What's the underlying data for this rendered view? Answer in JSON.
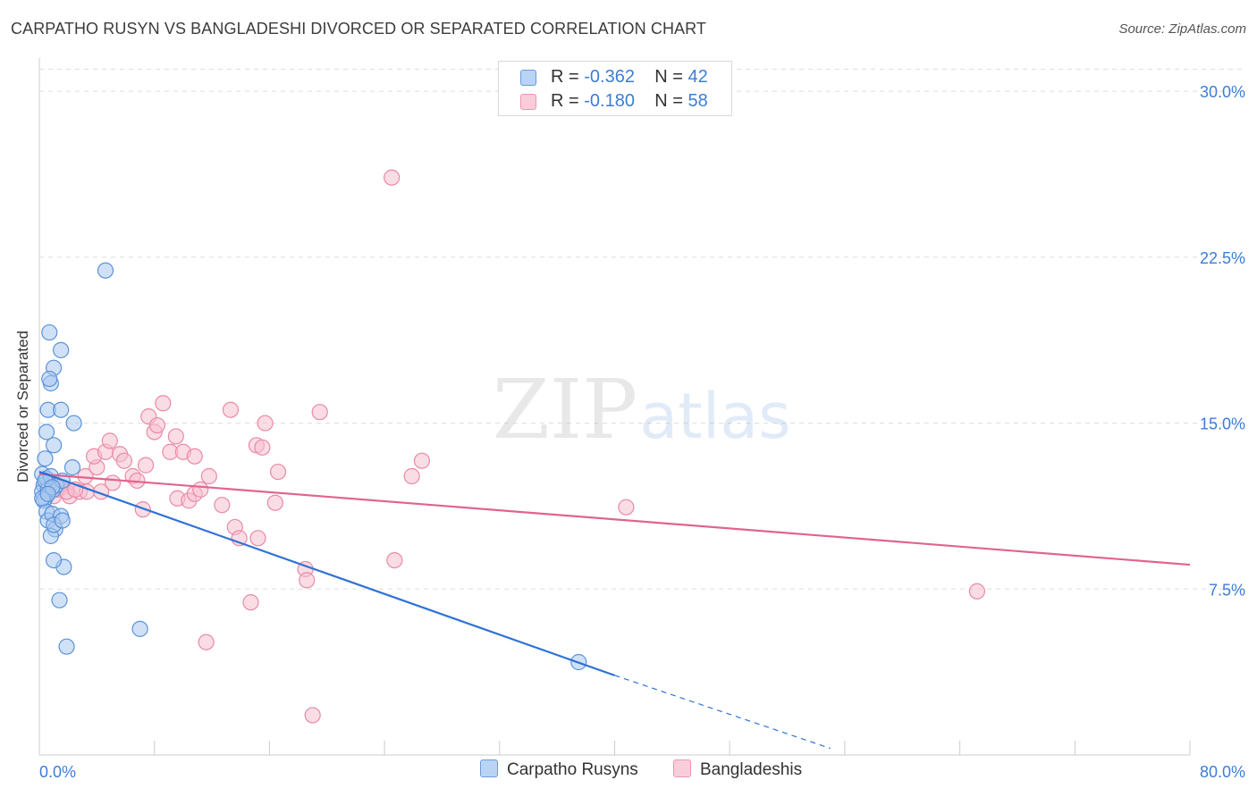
{
  "title": "CARPATHO RUSYN VS BANGLADESHI DIVORCED OR SEPARATED CORRELATION CHART",
  "source": "Source: ZipAtlas.com",
  "watermark": {
    "zip": "ZIP",
    "atlas": "atlas"
  },
  "legend_top": {
    "rows": [
      {
        "r_label": "R = ",
        "r_value": "-0.362",
        "n_label": "N = ",
        "n_value": "42"
      },
      {
        "r_label": "R = ",
        "r_value": "-0.180",
        "n_label": "N = ",
        "n_value": "58"
      }
    ]
  },
  "legend_bottom": {
    "series1": "Carpatho Rusyns",
    "series2": "Bangladeshis"
  },
  "colors": {
    "blue_fill": "#a9c8f0",
    "blue_stroke": "#5b93d8",
    "blue_line": "#2f72d4",
    "pink_fill": "#f6c0d0",
    "pink_stroke": "#e98aa6",
    "pink_line": "#e0648f",
    "axis_text": "#3d7dd8",
    "grid": "#dddddd"
  },
  "chart_data": {
    "type": "scatter",
    "title": "CARPATHO RUSYN VS BANGLADESHI DIVORCED OR SEPARATED CORRELATION CHART",
    "xlabel": "",
    "ylabel": "Divorced or Separated",
    "xlim": [
      0,
      80
    ],
    "ylim": [
      0,
      31.5
    ],
    "x_tick_labels": [
      "0.0%",
      "80.0%"
    ],
    "y_ticks": [
      7.5,
      15.0,
      22.5,
      30.0
    ],
    "y_tick_labels": [
      "7.5%",
      "15.0%",
      "22.5%",
      "30.0%"
    ],
    "grid": true,
    "legend_position": "top-center",
    "series": [
      {
        "name": "Carpatho Rusyns",
        "color": "#a9c8f0",
        "trend": {
          "x": [
            0,
            40
          ],
          "y": [
            12.8,
            3.6
          ],
          "dashed_to": [
            55,
            0.3
          ]
        },
        "points": [
          [
            0.2,
            12.7
          ],
          [
            0.3,
            12.2
          ],
          [
            0.2,
            11.9
          ],
          [
            0.4,
            11.6
          ],
          [
            0.5,
            12.5
          ],
          [
            0.6,
            12.0
          ],
          [
            0.3,
            11.5
          ],
          [
            0.8,
            12.6
          ],
          [
            1.0,
            12.0
          ],
          [
            0.5,
            11.0
          ],
          [
            1.2,
            12.2
          ],
          [
            1.6,
            12.4
          ],
          [
            0.6,
            10.6
          ],
          [
            0.9,
            10.9
          ],
          [
            1.1,
            10.2
          ],
          [
            1.5,
            10.8
          ],
          [
            0.8,
            9.9
          ],
          [
            1.0,
            10.4
          ],
          [
            1.6,
            10.6
          ],
          [
            0.4,
            13.4
          ],
          [
            1.0,
            14.0
          ],
          [
            0.5,
            14.6
          ],
          [
            0.6,
            15.6
          ],
          [
            1.5,
            15.6
          ],
          [
            2.4,
            15.0
          ],
          [
            0.8,
            16.8
          ],
          [
            1.0,
            17.5
          ],
          [
            0.7,
            17.0
          ],
          [
            1.5,
            18.3
          ],
          [
            0.7,
            19.1
          ],
          [
            4.6,
            21.9
          ],
          [
            2.3,
            13.0
          ],
          [
            1.7,
            8.5
          ],
          [
            1.0,
            8.8
          ],
          [
            1.4,
            7.0
          ],
          [
            1.9,
            4.9
          ],
          [
            7.0,
            5.7
          ],
          [
            37.5,
            4.2
          ],
          [
            0.2,
            11.6
          ],
          [
            0.4,
            12.4
          ],
          [
            0.9,
            12.1
          ],
          [
            0.6,
            11.8
          ]
        ]
      },
      {
        "name": "Bangladeshis",
        "color": "#f6c0d0",
        "trend": {
          "x": [
            0,
            80
          ],
          "y": [
            12.7,
            8.6
          ]
        },
        "points": [
          [
            0.6,
            12.2
          ],
          [
            1.0,
            11.7
          ],
          [
            1.3,
            12.0
          ],
          [
            1.6,
            12.1
          ],
          [
            2.1,
            11.7
          ],
          [
            2.8,
            11.9
          ],
          [
            3.3,
            11.9
          ],
          [
            3.2,
            12.6
          ],
          [
            4.0,
            13.0
          ],
          [
            3.8,
            13.5
          ],
          [
            4.3,
            11.9
          ],
          [
            4.6,
            13.7
          ],
          [
            4.9,
            14.2
          ],
          [
            5.6,
            13.6
          ],
          [
            5.1,
            12.3
          ],
          [
            5.9,
            13.3
          ],
          [
            6.5,
            12.6
          ],
          [
            6.8,
            12.4
          ],
          [
            7.2,
            11.1
          ],
          [
            7.4,
            13.1
          ],
          [
            7.6,
            15.3
          ],
          [
            8.0,
            14.6
          ],
          [
            8.2,
            14.9
          ],
          [
            8.6,
            15.9
          ],
          [
            9.1,
            13.7
          ],
          [
            9.5,
            14.4
          ],
          [
            9.6,
            11.6
          ],
          [
            10.0,
            13.7
          ],
          [
            10.4,
            11.5
          ],
          [
            10.8,
            13.5
          ],
          [
            10.8,
            11.8
          ],
          [
            11.2,
            12.0
          ],
          [
            11.8,
            12.6
          ],
          [
            12.7,
            11.3
          ],
          [
            13.3,
            15.6
          ],
          [
            13.6,
            10.3
          ],
          [
            13.9,
            9.8
          ],
          [
            14.7,
            6.9
          ],
          [
            15.2,
            9.8
          ],
          [
            15.1,
            14.0
          ],
          [
            15.5,
            13.9
          ],
          [
            15.7,
            15.0
          ],
          [
            16.6,
            12.8
          ],
          [
            16.4,
            11.4
          ],
          [
            18.5,
            8.4
          ],
          [
            18.6,
            7.9
          ],
          [
            19.0,
            1.8
          ],
          [
            19.5,
            15.5
          ],
          [
            24.5,
            26.1
          ],
          [
            24.7,
            8.8
          ],
          [
            25.9,
            12.6
          ],
          [
            26.6,
            13.3
          ],
          [
            40.8,
            11.2
          ],
          [
            65.2,
            7.4
          ],
          [
            11.6,
            5.1
          ],
          [
            0.9,
            12.1
          ],
          [
            1.9,
            11.9
          ],
          [
            2.5,
            12.0
          ]
        ]
      }
    ]
  }
}
